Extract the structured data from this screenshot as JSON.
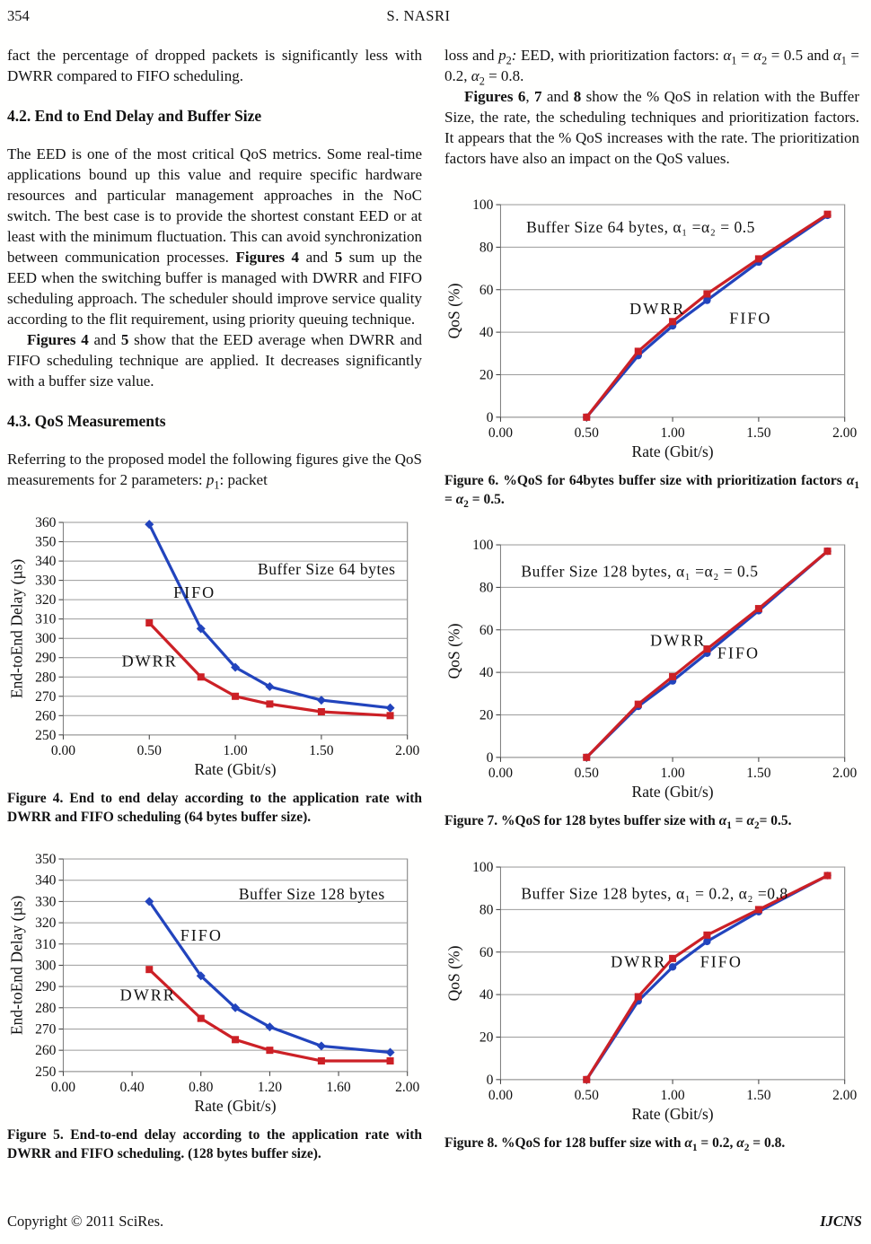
{
  "page": {
    "number": "354",
    "running_head": "S. NASRI"
  },
  "footer": {
    "copyright": "Copyright © 2011 SciRes.",
    "journal": "IJCNS"
  },
  "left_column": {
    "p1": [
      {
        "t": "fact the percentage of dropped packets is significantly less with DWRR compared to FIFO scheduling."
      }
    ],
    "h1": "4.2. End to End Delay and Buffer Size",
    "p2": [
      {
        "t": "The EED is one of the most critical QoS metrics. Some real-time applications bound up this value and require specific hardware resources and particular management approaches in the NoC switch. The best case is to provide the shortest constant EED or at least with the minimum fluctuation. This can avoid synchronization between communication processes. "
      },
      {
        "t": "Figures 4",
        "b": true
      },
      {
        "t": " and "
      },
      {
        "t": "5",
        "b": true
      },
      {
        "t": " sum up the EED when the switching buffer is managed with DWRR and FIFO scheduling approach. The scheduler should improve service quality according to the flit requirement, using priority queuing technique."
      }
    ],
    "p3": [
      {
        "t": "Figures 4",
        "b": true
      },
      {
        "t": " and "
      },
      {
        "t": "5",
        "b": true
      },
      {
        "t": " show that the EED average when DWRR and FIFO scheduling technique are applied. It decreases significantly with a buffer size value."
      }
    ],
    "h2": "4.3. QoS Measurements",
    "p4": [
      {
        "t": "Referring to the proposed model the following figures give the QoS measurements for 2 parameters: "
      },
      {
        "t": "p",
        "i": true
      },
      {
        "t": "1",
        "sub": true
      },
      {
        "t": ": packet"
      }
    ]
  },
  "right_column": {
    "p1": [
      {
        "t": "loss and "
      },
      {
        "t": "p",
        "i": true
      },
      {
        "t": "2",
        "sub": true
      },
      {
        "t": ":",
        "i": true
      },
      {
        "t": " EED, with prioritization factors: "
      },
      {
        "t": "α",
        "i": true
      },
      {
        "t": "1",
        "sub": true
      },
      {
        "t": " = "
      },
      {
        "t": "α",
        "i": true
      },
      {
        "t": "2",
        "sub": true
      },
      {
        "t": " = 0.5 and "
      },
      {
        "t": "α",
        "i": true
      },
      {
        "t": "1",
        "sub": true
      },
      {
        "t": " = 0.2, "
      },
      {
        "t": "α",
        "i": true
      },
      {
        "t": "2",
        "sub": true
      },
      {
        "t": " = 0.8."
      }
    ],
    "p2": [
      {
        "t": "Figures 6",
        "b": true
      },
      {
        "t": ", "
      },
      {
        "t": "7",
        "b": true
      },
      {
        "t": " and "
      },
      {
        "t": "8",
        "b": true
      },
      {
        "t": " show the % QoS in relation with the Buffer Size, the rate, the scheduling techniques and prioritization factors. It appears that the % QoS increases with the rate. The prioritization factors have also an impact on the QoS values."
      }
    ]
  },
  "figures": {
    "fig4": {
      "caption": [
        {
          "t": "Figure 4. End to end delay according to the application rate with DWRR and FIFO scheduling (64 bytes buffer size)."
        }
      ]
    },
    "fig5": {
      "caption": [
        {
          "t": "Figure 5. End-to-end delay according to the application rate with DWRR and FIFO scheduling. (128 bytes buffer size)."
        }
      ]
    },
    "fig6": {
      "caption": [
        {
          "t": "Figure 6. %QoS for 64bytes buffer size with prioritization factors "
        },
        {
          "t": "α",
          "i": true
        },
        {
          "t": "1",
          "sub": true
        },
        {
          "t": " = "
        },
        {
          "t": "α",
          "i": true
        },
        {
          "t": "2",
          "sub": true
        },
        {
          "t": " = 0.5."
        }
      ]
    },
    "fig7": {
      "caption": [
        {
          "t": "Figure 7. %QoS for 128 bytes buffer size with "
        },
        {
          "t": "α",
          "i": true
        },
        {
          "t": "1",
          "sub": true
        },
        {
          "t": " = "
        },
        {
          "t": "α",
          "i": true
        },
        {
          "t": "2",
          "sub": true
        },
        {
          "t": "= 0.5."
        }
      ]
    },
    "fig8": {
      "caption": [
        {
          "t": "Figure 8. %QoS for 128 buffer size with "
        },
        {
          "t": "α",
          "i": true
        },
        {
          "t": "1",
          "sub": true
        },
        {
          "t": " = 0.2, "
        },
        {
          "t": "α",
          "i": true
        },
        {
          "t": "2",
          "sub": true
        },
        {
          "t": " = 0.8."
        }
      ]
    }
  },
  "chart_data": {
    "fig4": {
      "type": "line",
      "xlabel": "Rate (Gbit/s)",
      "ylabel": "End-toEnd Delay (µs)",
      "xlim": [
        0,
        2
      ],
      "ylim": [
        250,
        360
      ],
      "ystep": 10,
      "xticks": [
        {
          "v": 0,
          "l": "0.00"
        },
        {
          "v": 0.5,
          "l": "0.50"
        },
        {
          "v": 1,
          "l": "1.00"
        },
        {
          "v": 1.5,
          "l": "1.50"
        },
        {
          "v": 2,
          "l": "2.00"
        }
      ],
      "series": [
        {
          "name": "FIFO",
          "color": "#2244bd",
          "marker": "diamond",
          "x": [
            0.5,
            0.8,
            1.0,
            1.2,
            1.5,
            1.9
          ],
          "y": [
            359,
            305,
            285,
            275,
            268,
            264
          ]
        },
        {
          "name": "DWRR",
          "color": "#cc2026",
          "marker": "square",
          "x": [
            0.5,
            0.8,
            1.0,
            1.2,
            1.5,
            1.9
          ],
          "y": [
            308,
            280,
            270,
            266,
            262,
            260
          ]
        }
      ],
      "annotations": [
        {
          "text": "Buffer Size 64 bytes",
          "x": 1.13,
          "y": 333,
          "size": 17.5,
          "ls": 0.5
        },
        {
          "text": "FIFO",
          "x": 0.64,
          "y": 321,
          "size": 18,
          "ls": 2
        },
        {
          "text": "DWRR",
          "x": 0.34,
          "y": 285.5,
          "size": 18,
          "ls": 2
        }
      ]
    },
    "fig5": {
      "type": "line",
      "xlabel": "Rate (Gbit/s)",
      "ylabel": "End-toEnd Delay (µs)",
      "xlim": [
        0,
        2
      ],
      "ylim": [
        250,
        350
      ],
      "ystep": 10,
      "xticks": [
        {
          "v": 0,
          "l": "0.00"
        },
        {
          "v": 0.4,
          "l": "0.40"
        },
        {
          "v": 0.8,
          "l": "0.80"
        },
        {
          "v": 1.2,
          "l": "1.20"
        },
        {
          "v": 1.6,
          "l": "1.60"
        },
        {
          "v": 2,
          "l": "2.00"
        }
      ],
      "series": [
        {
          "name": "FIFO",
          "color": "#2244bd",
          "marker": "diamond",
          "x": [
            0.5,
            0.8,
            1.0,
            1.2,
            1.5,
            1.9
          ],
          "y": [
            330,
            295,
            280,
            271,
            262,
            259
          ]
        },
        {
          "name": "DWRR",
          "color": "#cc2026",
          "marker": "square",
          "x": [
            0.5,
            0.8,
            1.0,
            1.2,
            1.5,
            1.9
          ],
          "y": [
            298,
            275,
            265,
            260,
            255,
            255
          ]
        }
      ],
      "annotations": [
        {
          "text": "Buffer Size 128 bytes",
          "x": 1.02,
          "y": 331,
          "size": 17.5,
          "ls": 0.5
        },
        {
          "text": "FIFO",
          "x": 0.68,
          "y": 311.5,
          "size": 18,
          "ls": 2
        },
        {
          "text": "DWRR",
          "x": 0.33,
          "y": 283.5,
          "size": 18,
          "ls": 2
        }
      ]
    },
    "fig6": {
      "type": "line",
      "xlabel": "Rate (Gbit/s)",
      "ylabel": "QoS (%)",
      "xlim": [
        0,
        2
      ],
      "ylim": [
        0,
        100
      ],
      "ystep": 20,
      "xticks": [
        {
          "v": 0,
          "l": "0.00"
        },
        {
          "v": 0.5,
          "l": "0.50"
        },
        {
          "v": 1,
          "l": "1.00"
        },
        {
          "v": 1.5,
          "l": "1.50"
        },
        {
          "v": 2,
          "l": "2.00"
        }
      ],
      "series": [
        {
          "name": "FIFO",
          "color": "#2244bd",
          "marker": "circle",
          "x": [
            0.5,
            0.8,
            1.0,
            1.2,
            1.5,
            1.9
          ],
          "y": [
            0,
            29,
            43,
            55,
            73,
            95
          ]
        },
        {
          "name": "DWRR",
          "color": "#cc2026",
          "marker": "square",
          "x": [
            0.5,
            0.8,
            1.0,
            1.2,
            1.5,
            1.9
          ],
          "y": [
            0,
            31,
            45,
            58,
            74.5,
            95.5
          ]
        }
      ],
      "annotations": [
        {
          "text": "Buffer Size 64 bytes, α₁ =α₂ = 0.5",
          "x": 0.15,
          "y": 87,
          "size": 17.5,
          "ls": 0.5
        },
        {
          "text": "DWRR",
          "x": 0.75,
          "y": 48.5,
          "size": 18,
          "ls": 2
        },
        {
          "text": "FIFO",
          "x": 1.33,
          "y": 44,
          "size": 18,
          "ls": 2
        }
      ]
    },
    "fig7": {
      "type": "line",
      "xlabel": "Rate (Gbit/s)",
      "ylabel": "QoS (%)",
      "xlim": [
        0,
        2
      ],
      "ylim": [
        0,
        100
      ],
      "ystep": 20,
      "xticks": [
        {
          "v": 0,
          "l": "0.00"
        },
        {
          "v": 0.5,
          "l": "0.50"
        },
        {
          "v": 1,
          "l": "1.00"
        },
        {
          "v": 1.5,
          "l": "1.50"
        },
        {
          "v": 2,
          "l": "2.00"
        }
      ],
      "series": [
        {
          "name": "FIFO",
          "color": "#2244bd",
          "marker": "circle",
          "x": [
            0.5,
            0.8,
            1.0,
            1.2,
            1.5,
            1.9
          ],
          "y": [
            0,
            24,
            36,
            49,
            69,
            97
          ]
        },
        {
          "name": "DWRR",
          "color": "#cc2026",
          "marker": "square",
          "x": [
            0.5,
            0.8,
            1.0,
            1.2,
            1.5,
            1.9
          ],
          "y": [
            0,
            25,
            38,
            51,
            70,
            97
          ]
        }
      ],
      "annotations": [
        {
          "text": "Buffer Size 128 bytes, α₁ =α₂ = 0.5",
          "x": 0.12,
          "y": 85,
          "size": 17.5,
          "ls": 0.5
        },
        {
          "text": "DWRR",
          "x": 0.87,
          "y": 52.5,
          "size": 18,
          "ls": 2
        },
        {
          "text": "FIFO",
          "x": 1.26,
          "y": 46.5,
          "size": 18,
          "ls": 2
        }
      ]
    },
    "fig8": {
      "type": "line",
      "xlabel": "Rate (Gbit/s)",
      "ylabel": "QoS (%)",
      "xlim": [
        0,
        2
      ],
      "ylim": [
        0,
        100
      ],
      "ystep": 20,
      "xticks": [
        {
          "v": 0,
          "l": "0.00"
        },
        {
          "v": 0.5,
          "l": "0.50"
        },
        {
          "v": 1,
          "l": "1.00"
        },
        {
          "v": 1.5,
          "l": "1.50"
        },
        {
          "v": 2,
          "l": "2.00"
        }
      ],
      "series": [
        {
          "name": "FIFO",
          "color": "#2244bd",
          "marker": "circle",
          "x": [
            0.5,
            0.8,
            1.0,
            1.2,
            1.5,
            1.9
          ],
          "y": [
            0,
            37,
            53,
            65,
            79,
            96
          ]
        },
        {
          "name": "DWRR",
          "color": "#cc2026",
          "marker": "square",
          "x": [
            0.5,
            0.8,
            1.0,
            1.2,
            1.5,
            1.9
          ],
          "y": [
            0,
            39,
            57,
            68,
            80,
            96
          ]
        }
      ],
      "annotations": [
        {
          "text": "Buffer Size 128 bytes, α₁ = 0.2, α₂ =0.8",
          "x": 0.12,
          "y": 85,
          "size": 17.5,
          "ls": 0.5
        },
        {
          "text": "DWRR",
          "x": 0.64,
          "y": 53,
          "size": 18,
          "ls": 2
        },
        {
          "text": "FIFO",
          "x": 1.16,
          "y": 53,
          "size": 18,
          "ls": 2
        }
      ]
    }
  }
}
